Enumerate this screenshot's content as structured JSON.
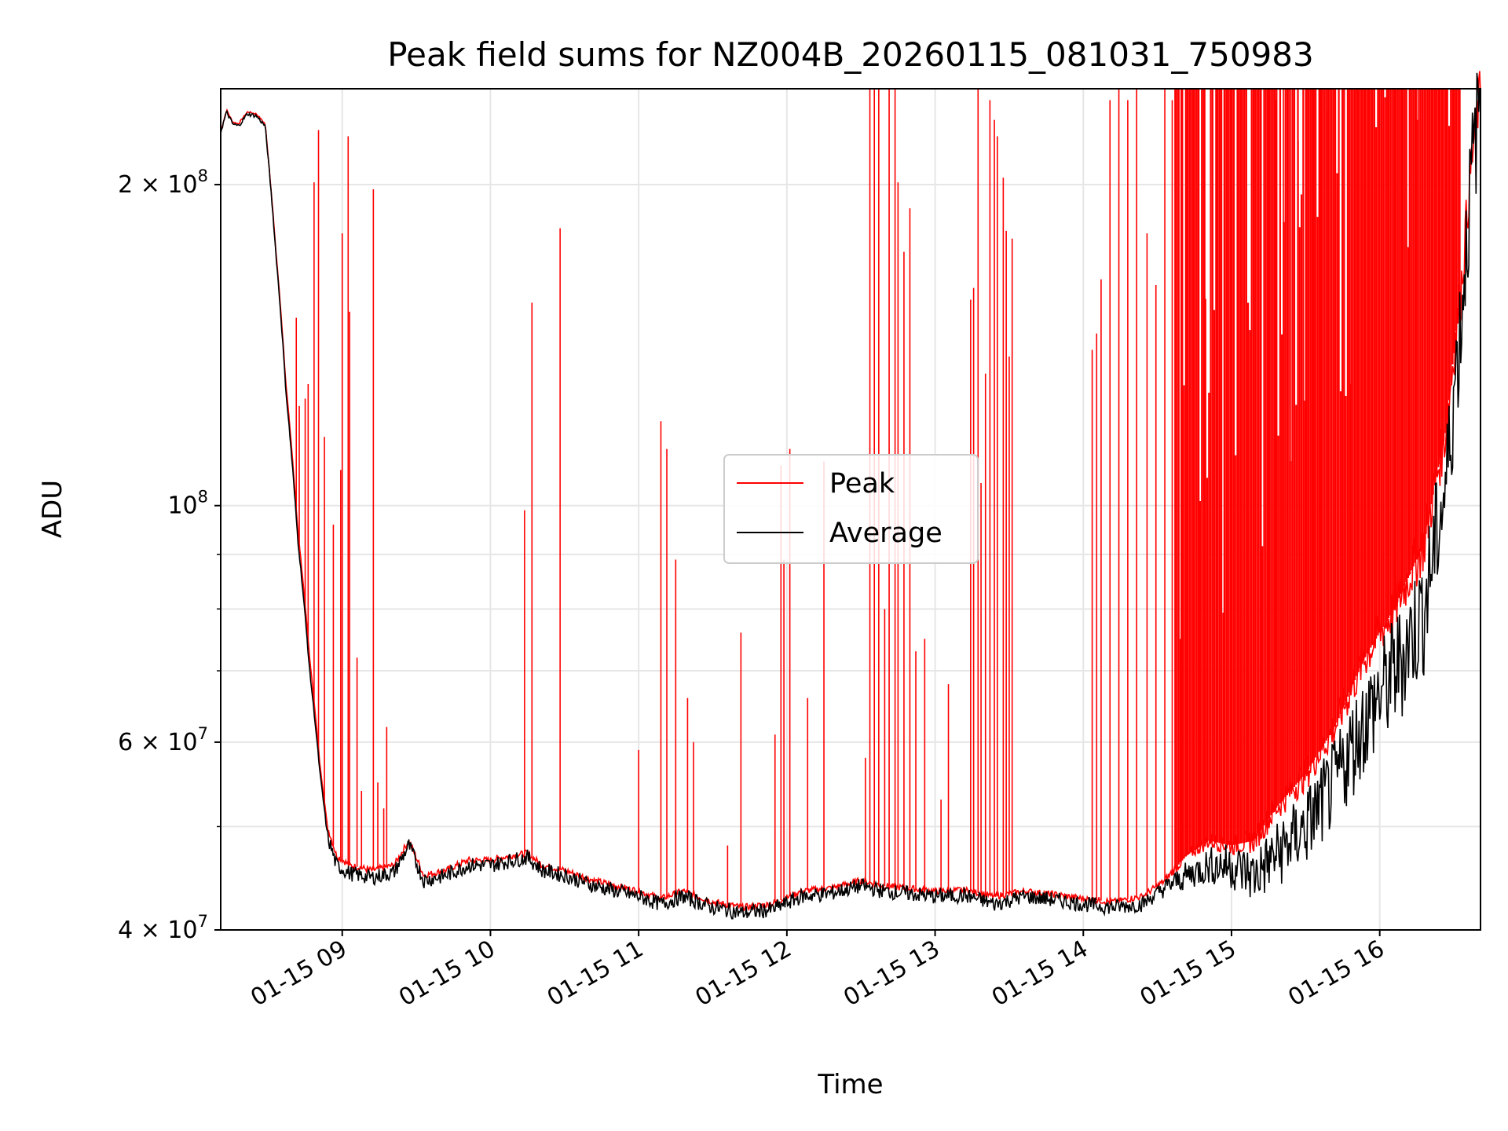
{
  "chart_data": {
    "type": "line",
    "title": "Peak field sums for NZ004B_20260115_081031_750983",
    "xlabel": "Time",
    "ylabel": "ADU",
    "yscale": "log",
    "grid": true,
    "legend_position": "center-right",
    "xlim_hours": [
      8.18,
      16.68
    ],
    "ylim": [
      40000000,
      246000000
    ],
    "x_ticks": [
      {
        "hour": 9,
        "label": "01-15 09"
      },
      {
        "hour": 10,
        "label": "01-15 10"
      },
      {
        "hour": 11,
        "label": "01-15 11"
      },
      {
        "hour": 12,
        "label": "01-15 12"
      },
      {
        "hour": 13,
        "label": "01-15 13"
      },
      {
        "hour": 14,
        "label": "01-15 14"
      },
      {
        "hour": 15,
        "label": "01-15 15"
      },
      {
        "hour": 16,
        "label": "01-15 16"
      }
    ],
    "y_ticks": [
      {
        "value": 40000000,
        "mantissa": "4",
        "exp": "7"
      },
      {
        "value": 60000000,
        "mantissa": "6",
        "exp": "7"
      },
      {
        "value": 100000000,
        "mantissa": "",
        "exp": "8"
      },
      {
        "value": 200000000,
        "mantissa": "2",
        "exp": "8"
      }
    ],
    "y_minor_grid": [
      50000000,
      70000000,
      80000000,
      90000000
    ],
    "series": [
      {
        "name": "Peak",
        "color": "#ff0000",
        "baseline": [
          [
            8.18,
            224000000
          ],
          [
            8.22,
            235000000
          ],
          [
            8.26,
            229000000
          ],
          [
            8.3,
            228000000
          ],
          [
            8.36,
            234000000
          ],
          [
            8.42,
            233000000
          ],
          [
            8.48,
            228000000
          ],
          [
            8.55,
            175000000
          ],
          [
            8.62,
            130000000
          ],
          [
            8.7,
            95000000
          ],
          [
            8.78,
            72000000
          ],
          [
            8.85,
            57000000
          ],
          [
            8.9,
            50000000
          ],
          [
            8.96,
            47000000
          ],
          [
            9.05,
            46000000
          ],
          [
            9.2,
            45500000
          ],
          [
            9.35,
            46000000
          ],
          [
            9.45,
            48500000
          ],
          [
            9.55,
            45000000
          ],
          [
            9.7,
            45500000
          ],
          [
            9.85,
            46500000
          ],
          [
            10.0,
            46500000
          ],
          [
            10.15,
            47000000
          ],
          [
            10.25,
            47200000
          ],
          [
            10.35,
            46000000
          ],
          [
            10.5,
            45500000
          ],
          [
            10.7,
            44500000
          ],
          [
            10.85,
            44000000
          ],
          [
            11.0,
            43500000
          ],
          [
            11.15,
            42800000
          ],
          [
            11.3,
            43500000
          ],
          [
            11.5,
            42500000
          ],
          [
            11.7,
            42000000
          ],
          [
            11.9,
            42300000
          ],
          [
            12.1,
            43500000
          ],
          [
            12.3,
            43800000
          ],
          [
            12.5,
            44500000
          ],
          [
            12.65,
            44000000
          ],
          [
            12.8,
            43800000
          ],
          [
            13.0,
            43500000
          ],
          [
            13.2,
            43600000
          ],
          [
            13.4,
            43000000
          ],
          [
            13.6,
            43500000
          ],
          [
            13.8,
            43200000
          ],
          [
            14.0,
            42800000
          ],
          [
            14.2,
            42500000
          ],
          [
            14.4,
            43000000
          ],
          [
            14.55,
            44500000
          ],
          [
            14.7,
            47000000
          ],
          [
            14.85,
            48500000
          ],
          [
            15.0,
            48000000
          ],
          [
            15.15,
            48500000
          ],
          [
            15.3,
            52000000
          ],
          [
            15.5,
            56000000
          ],
          [
            15.7,
            62000000
          ],
          [
            15.9,
            72000000
          ],
          [
            16.1,
            80000000
          ],
          [
            16.3,
            92000000
          ],
          [
            16.45,
            118000000
          ],
          [
            16.55,
            160000000
          ],
          [
            16.62,
            210000000
          ],
          [
            16.68,
            246000000
          ]
        ]
      },
      {
        "name": "Average",
        "color": "#000000",
        "baseline": [
          [
            8.18,
            224000000
          ],
          [
            8.22,
            234000000
          ],
          [
            8.26,
            228000000
          ],
          [
            8.3,
            227000000
          ],
          [
            8.36,
            233000000
          ],
          [
            8.42,
            232000000
          ],
          [
            8.48,
            227000000
          ],
          [
            8.55,
            174000000
          ],
          [
            8.62,
            128000000
          ],
          [
            8.7,
            93000000
          ],
          [
            8.78,
            70000000
          ],
          [
            8.85,
            56000000
          ],
          [
            8.9,
            49000000
          ],
          [
            8.96,
            46000000
          ],
          [
            9.05,
            45200000
          ],
          [
            9.2,
            44800000
          ],
          [
            9.35,
            45300000
          ],
          [
            9.45,
            48000000
          ],
          [
            9.55,
            44500000
          ],
          [
            9.7,
            45000000
          ],
          [
            9.85,
            46000000
          ],
          [
            10.0,
            46000000
          ],
          [
            10.15,
            46500000
          ],
          [
            10.25,
            46800000
          ],
          [
            10.35,
            45500000
          ],
          [
            10.5,
            45000000
          ],
          [
            10.7,
            44000000
          ],
          [
            10.85,
            43500000
          ],
          [
            11.0,
            43000000
          ],
          [
            11.15,
            42300000
          ],
          [
            11.3,
            43000000
          ],
          [
            11.5,
            42000000
          ],
          [
            11.7,
            41500000
          ],
          [
            11.9,
            41800000
          ],
          [
            12.1,
            43000000
          ],
          [
            12.3,
            43300000
          ],
          [
            12.5,
            44000000
          ],
          [
            12.65,
            43500000
          ],
          [
            12.8,
            43300000
          ],
          [
            13.0,
            43000000
          ],
          [
            13.2,
            43100000
          ],
          [
            13.4,
            42300000
          ],
          [
            13.6,
            43000000
          ],
          [
            13.8,
            42700000
          ],
          [
            14.0,
            42300000
          ],
          [
            14.2,
            42000000
          ],
          [
            14.4,
            42300000
          ],
          [
            14.55,
            43800000
          ],
          [
            14.7,
            45000000
          ],
          [
            14.85,
            46000000
          ],
          [
            15.0,
            46000000
          ],
          [
            15.15,
            45000000
          ],
          [
            15.3,
            47000000
          ],
          [
            15.5,
            50000000
          ],
          [
            15.7,
            55000000
          ],
          [
            15.9,
            63000000
          ],
          [
            16.1,
            70000000
          ],
          [
            16.3,
            80000000
          ],
          [
            16.45,
            105000000
          ],
          [
            16.55,
            150000000
          ],
          [
            16.62,
            205000000
          ],
          [
            16.68,
            244000000
          ]
        ]
      }
    ],
    "peak_spikes": [
      [
        8.69,
        150000000
      ],
      [
        8.71,
        124000000
      ],
      [
        8.75,
        126000000
      ],
      [
        8.77,
        130000000
      ],
      [
        8.81,
        201000000
      ],
      [
        8.84,
        225000000
      ],
      [
        8.88,
        116000000
      ],
      [
        8.94,
        96000000
      ],
      [
        8.99,
        108000000
      ],
      [
        9.0,
        180000000
      ],
      [
        9.04,
        222000000
      ],
      [
        9.05,
        152000000
      ],
      [
        9.1,
        72000000
      ],
      [
        9.13,
        54000000
      ],
      [
        9.21,
        198000000
      ],
      [
        9.24,
        55000000
      ],
      [
        9.28,
        52000000
      ],
      [
        9.3,
        62000000
      ],
      [
        10.23,
        99000000
      ],
      [
        10.28,
        155000000
      ],
      [
        10.47,
        182000000
      ],
      [
        11.0,
        59000000
      ],
      [
        11.15,
        120000000
      ],
      [
        11.19,
        113000000
      ],
      [
        11.25,
        89000000
      ],
      [
        11.33,
        66000000
      ],
      [
        11.37,
        60000000
      ],
      [
        11.6,
        48000000
      ],
      [
        11.69,
        76000000
      ],
      [
        11.92,
        61000000
      ],
      [
        11.96,
        109000000
      ],
      [
        11.98,
        89000000
      ],
      [
        12.02,
        113000000
      ],
      [
        12.14,
        66000000
      ],
      [
        12.25,
        110000000
      ],
      [
        12.53,
        58000000
      ],
      [
        12.56,
        246000000
      ],
      [
        12.59,
        246000000
      ],
      [
        12.62,
        246000000
      ],
      [
        12.66,
        80000000
      ],
      [
        12.69,
        246000000
      ],
      [
        12.73,
        246000000
      ],
      [
        12.75,
        201000000
      ],
      [
        12.79,
        173000000
      ],
      [
        12.83,
        190000000
      ],
      [
        12.87,
        73000000
      ],
      [
        12.93,
        75000000
      ],
      [
        13.04,
        53000000
      ],
      [
        13.09,
        68000000
      ],
      [
        13.24,
        156000000
      ],
      [
        13.26,
        160000000
      ],
      [
        13.29,
        246000000
      ],
      [
        13.31,
        105000000
      ],
      [
        13.34,
        133000000
      ],
      [
        13.37,
        240000000
      ],
      [
        13.4,
        230000000
      ],
      [
        13.42,
        222000000
      ],
      [
        13.46,
        203000000
      ],
      [
        13.48,
        181000000
      ],
      [
        13.5,
        138000000
      ],
      [
        13.52,
        178000000
      ],
      [
        14.06,
        140000000
      ],
      [
        14.09,
        145000000
      ],
      [
        14.12,
        163000000
      ],
      [
        14.18,
        240000000
      ],
      [
        14.24,
        246000000
      ],
      [
        14.3,
        240000000
      ],
      [
        14.36,
        246000000
      ],
      [
        14.43,
        180000000
      ],
      [
        14.49,
        161000000
      ],
      [
        14.55,
        246000000
      ],
      [
        14.6,
        240000000
      ],
      [
        14.62,
        156000000
      ],
      [
        14.66,
        246000000
      ],
      [
        14.7,
        230000000
      ],
      [
        14.74,
        246000000
      ],
      [
        14.78,
        246000000
      ],
      [
        14.82,
        246000000
      ],
      [
        14.86,
        240000000
      ],
      [
        14.9,
        246000000
      ],
      [
        14.95,
        246000000
      ],
      [
        15.0,
        246000000
      ],
      [
        15.05,
        246000000
      ],
      [
        15.1,
        230000000
      ],
      [
        15.15,
        246000000
      ],
      [
        15.2,
        246000000
      ],
      [
        15.25,
        246000000
      ],
      [
        15.3,
        240000000
      ],
      [
        15.35,
        246000000
      ],
      [
        15.4,
        246000000
      ],
      [
        15.45,
        220000000
      ],
      [
        15.5,
        246000000
      ],
      [
        15.55,
        246000000
      ],
      [
        15.6,
        246000000
      ],
      [
        15.65,
        235000000
      ],
      [
        15.7,
        246000000
      ],
      [
        15.75,
        246000000
      ],
      [
        15.8,
        130000000
      ],
      [
        15.85,
        246000000
      ],
      [
        15.9,
        246000000
      ],
      [
        15.95,
        246000000
      ],
      [
        16.0,
        240000000
      ],
      [
        16.05,
        246000000
      ],
      [
        16.1,
        246000000
      ],
      [
        16.15,
        246000000
      ],
      [
        16.2,
        246000000
      ],
      [
        16.25,
        246000000
      ],
      [
        16.3,
        246000000
      ],
      [
        16.35,
        246000000
      ],
      [
        16.4,
        246000000
      ],
      [
        16.45,
        246000000
      ],
      [
        16.5,
        246000000
      ]
    ]
  }
}
